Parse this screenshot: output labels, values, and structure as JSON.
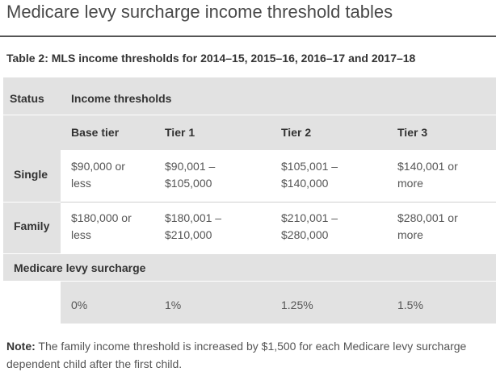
{
  "page": {
    "title": "Medicare levy surcharge income threshold tables"
  },
  "table": {
    "caption": "Table 2: MLS income thresholds for 2014–15, 2015–16, 2016–17 and 2017–18",
    "status_header": "Status",
    "income_header": "Income thresholds",
    "tiers": [
      "Base tier",
      "Tier 1",
      "Tier 2",
      "Tier 3"
    ],
    "rows": [
      {
        "label": "Single",
        "values": [
          [
            "$90,000 or",
            "less"
          ],
          [
            "$90,001 –",
            "$105,000"
          ],
          [
            "$105,001 –",
            "$140,000"
          ],
          [
            "$140,001 or",
            "more"
          ]
        ]
      },
      {
        "label": "Family",
        "values": [
          [
            "$180,000 or",
            "less"
          ],
          [
            "$180,001 –",
            "$210,000"
          ],
          [
            "$210,001 –",
            "$280,000"
          ],
          [
            "$280,001 or",
            "more"
          ]
        ]
      }
    ],
    "surcharge_header": "Medicare levy surcharge",
    "surcharge_values": [
      "0%",
      "1%",
      "1.25%",
      "1.5%"
    ]
  },
  "note": {
    "label": "Note:",
    "text": " The family income threshold is increased by $1,500 for each Medicare levy surcharge dependent child after the first child."
  }
}
